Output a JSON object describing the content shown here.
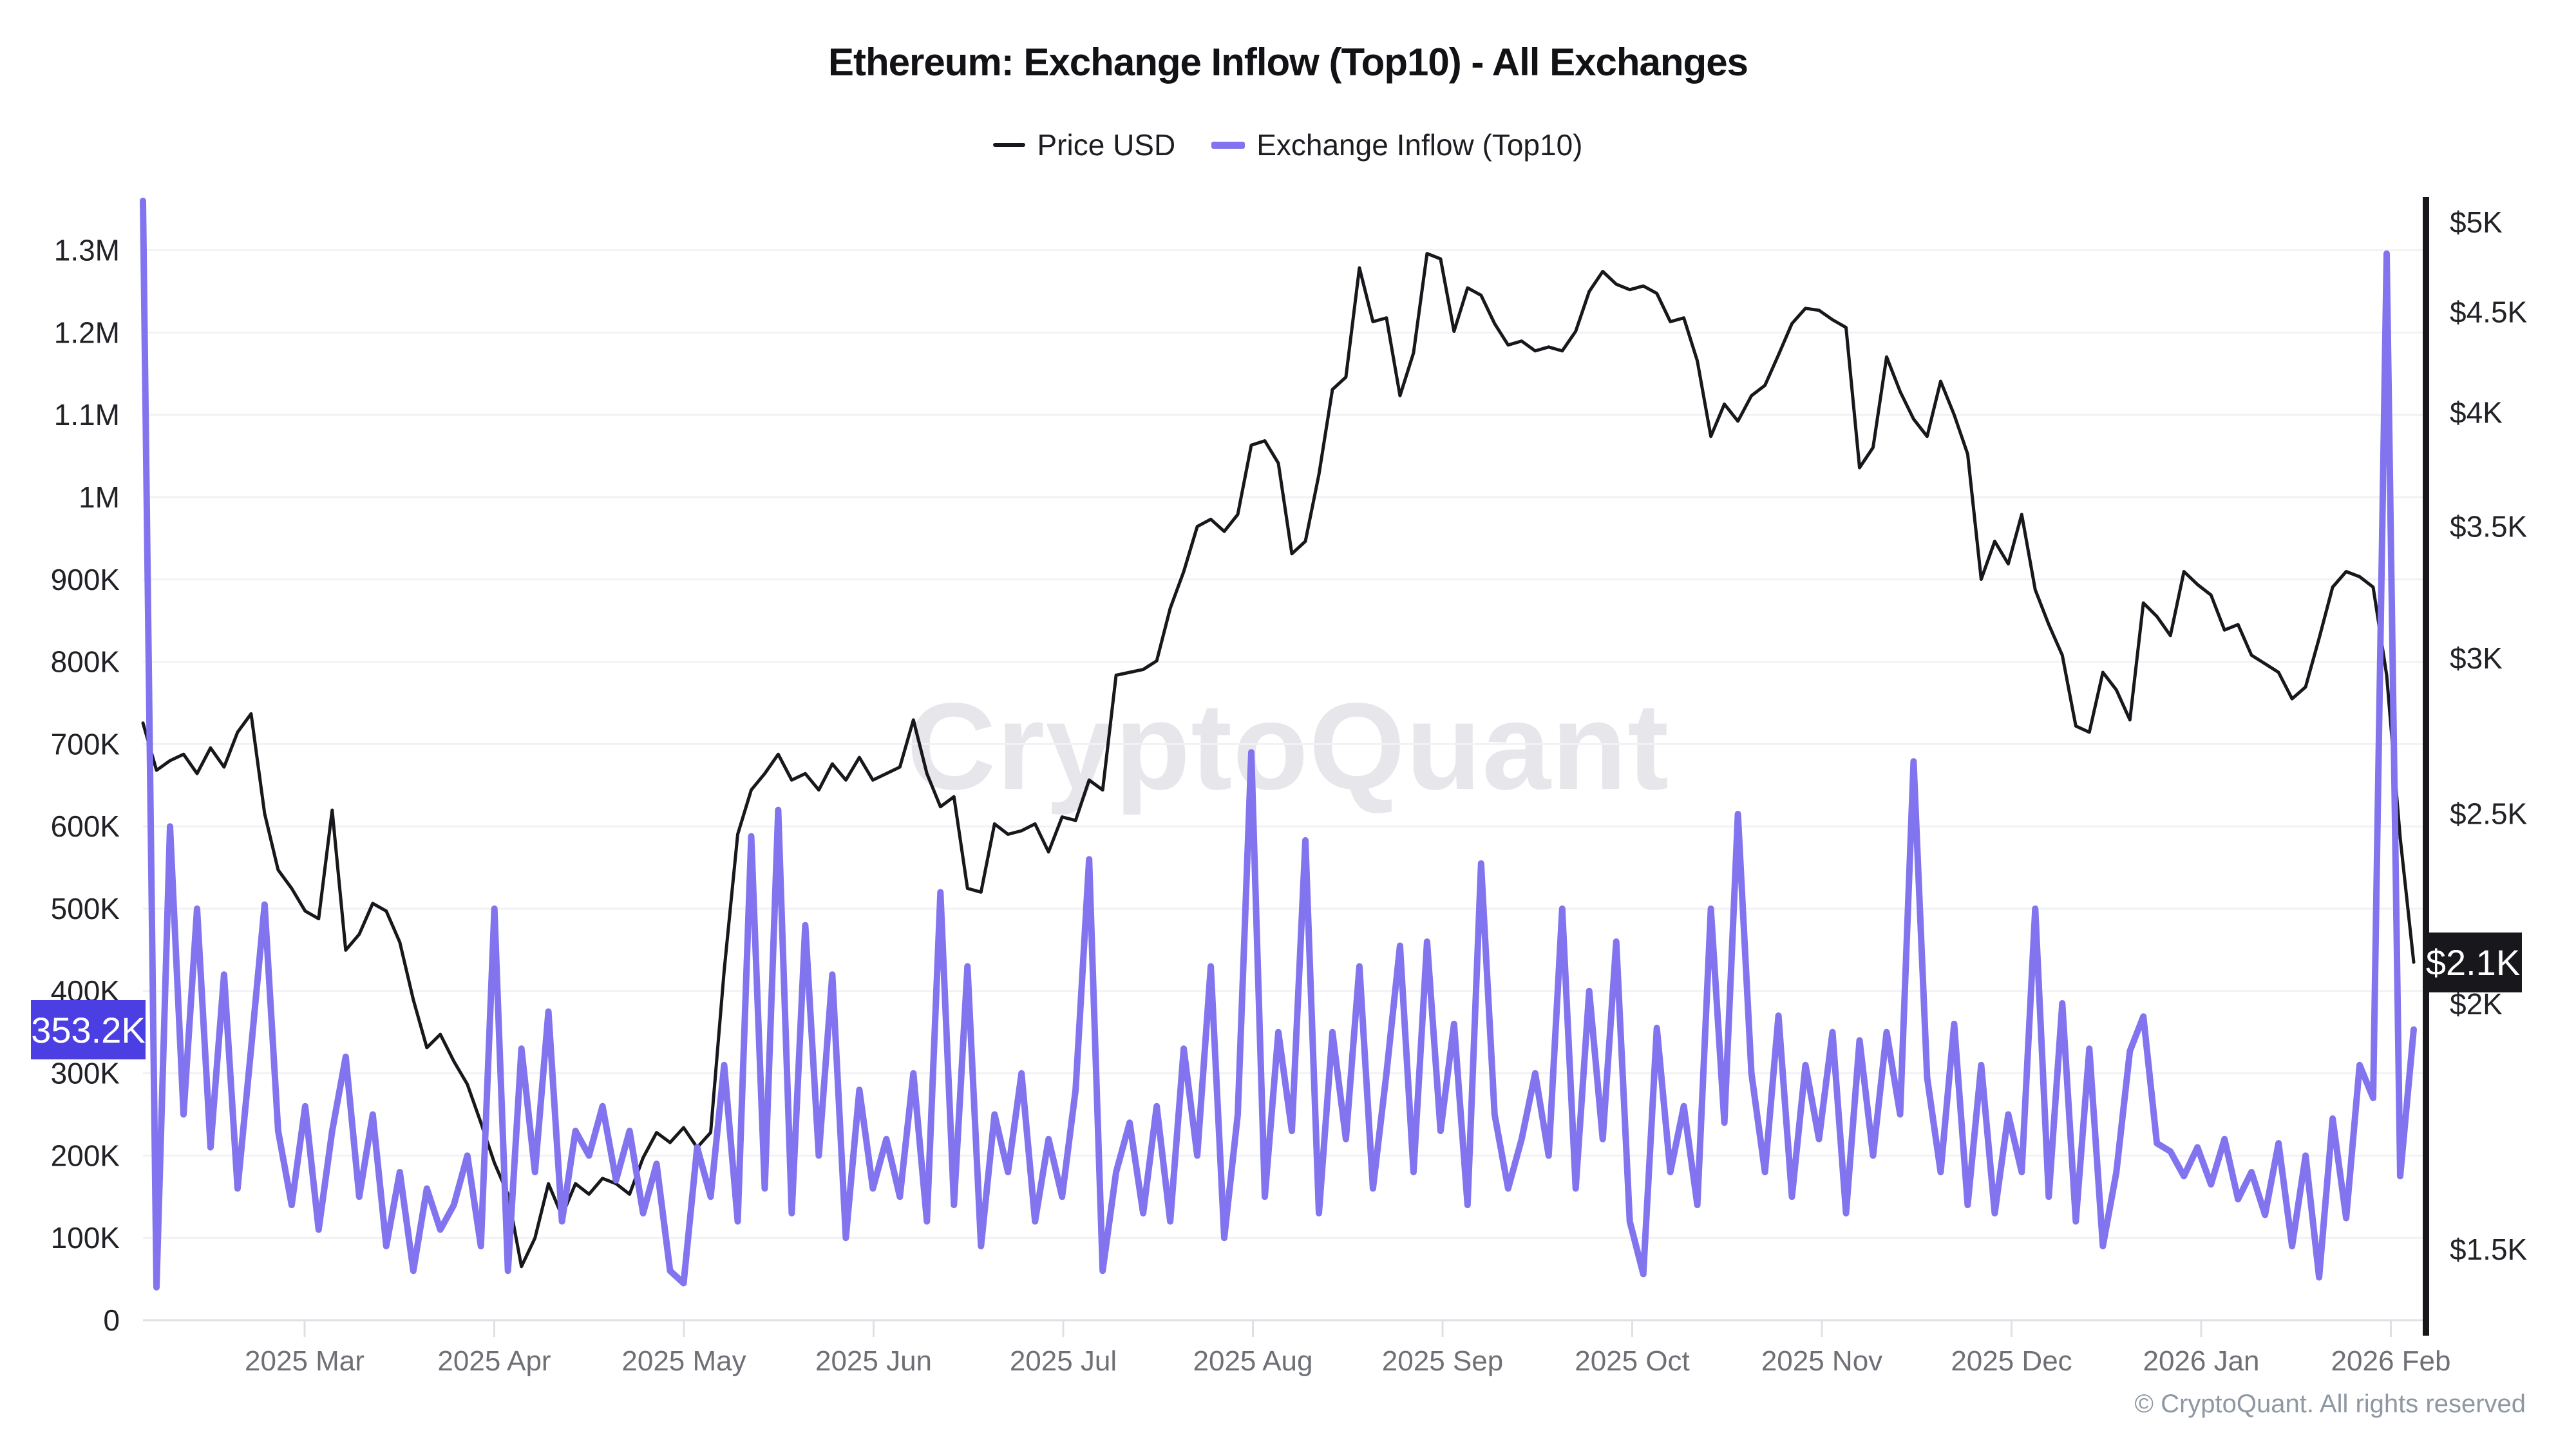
{
  "header": {
    "title": "Ethereum: Exchange Inflow (Top10) - All Exchanges",
    "legend": [
      {
        "label": "Price USD",
        "color": "#17171c"
      },
      {
        "label": "Exchange Inflow (Top10)",
        "color": "#8174ee"
      }
    ]
  },
  "watermark": "CryptoQuant",
  "footer": {
    "copyright": "© CryptoQuant. All rights reserved"
  },
  "axes": {
    "left": {
      "ticks": [
        "0",
        "100K",
        "200K",
        "300K",
        "400K",
        "500K",
        "600K",
        "700K",
        "800K",
        "900K",
        "1M",
        "1.1M",
        "1.2M",
        "1.3M"
      ],
      "tick_values_k": [
        0,
        100,
        200,
        300,
        400,
        500,
        600,
        700,
        800,
        900,
        1000,
        1100,
        1200,
        1300
      ],
      "current_badge": {
        "label": "353.2K",
        "color": "#4b3ee2"
      }
    },
    "right": {
      "ticks": [
        "$5K",
        "$4.5K",
        "$4K",
        "$3.5K",
        "$3K",
        "$2.5K",
        "$2K",
        "$1.5K"
      ],
      "tick_values_usd": [
        5000,
        4500,
        4000,
        3500,
        3000,
        2500,
        2000,
        1500
      ],
      "current_badge": {
        "label": "$2.1K",
        "color": "#17171c"
      }
    },
    "x": {
      "ticks": [
        "2025 Mar",
        "2025 Apr",
        "2025 May",
        "2025 Jun",
        "2025 Jul",
        "2025 Aug",
        "2025 Sep",
        "2025 Oct",
        "2025 Nov",
        "2025 Dec",
        "2026 Jan",
        "2026 Feb"
      ]
    }
  },
  "chart_data": {
    "type": "line",
    "title": "Ethereum: Exchange Inflow (Top10) - All Exchanges",
    "x_range_approx": [
      "2025-02-05",
      "2026-02-04"
    ],
    "x_tick_labels": [
      "2025 Mar",
      "2025 Apr",
      "2025 May",
      "2025 Jun",
      "2025 Jul",
      "2025 Aug",
      "2025 Sep",
      "2025 Oct",
      "2025 Nov",
      "2025 Dec",
      "2026 Jan",
      "2026 Feb"
    ],
    "grid": "horizontal-only",
    "legend_position": "top-center",
    "left_axis": {
      "label": "Exchange Inflow (Top10)",
      "unit": "ETH (thousands)",
      "min": 0,
      "max": 1360,
      "tick_step_k": 100,
      "scale": "linear"
    },
    "right_axis": {
      "label": "Price USD",
      "unit": "USD",
      "scale": "log",
      "ticks": [
        1500,
        2000,
        2500,
        3000,
        3500,
        4000,
        4500,
        5000
      ]
    },
    "last_values": {
      "exchange_inflow_k": 353.2,
      "price_usd_k": 2.1
    },
    "series": [
      {
        "name": "Price USD",
        "axis": "right",
        "color": "#17171c",
        "stroke_width": 5,
        "scale": "log",
        "unit": "USD",
        "values": [
          2780,
          2630,
          2660,
          2680,
          2620,
          2700,
          2640,
          2750,
          2810,
          2500,
          2340,
          2290,
          2230,
          2210,
          2510,
          2130,
          2170,
          2250,
          2230,
          2150,
          2010,
          1900,
          1930,
          1870,
          1820,
          1740,
          1660,
          1600,
          1470,
          1520,
          1620,
          1560,
          1620,
          1600,
          1630,
          1620,
          1600,
          1670,
          1720,
          1700,
          1730,
          1690,
          1720,
          2080,
          2440,
          2570,
          2620,
          2680,
          2600,
          2620,
          2570,
          2650,
          2600,
          2670,
          2600,
          2620,
          2640,
          2790,
          2620,
          2520,
          2550,
          2290,
          2280,
          2470,
          2440,
          2450,
          2470,
          2390,
          2490,
          2480,
          2600,
          2570,
          2940,
          2950,
          2960,
          2990,
          3180,
          3320,
          3500,
          3530,
          3480,
          3550,
          3850,
          3870,
          3770,
          3390,
          3440,
          3720,
          4110,
          4170,
          4740,
          4450,
          4470,
          4080,
          4290,
          4820,
          4790,
          4400,
          4630,
          4590,
          4440,
          4330,
          4350,
          4300,
          4320,
          4300,
          4400,
          4610,
          4720,
          4650,
          4620,
          4640,
          4600,
          4450,
          4470,
          4250,
          3890,
          4040,
          3960,
          4080,
          4130,
          4280,
          4440,
          4520,
          4510,
          4460,
          4420,
          3750,
          3840,
          4270,
          4100,
          3970,
          3890,
          4150,
          3990,
          3810,
          3290,
          3440,
          3350,
          3550,
          3250,
          3120,
          3010,
          2770,
          2750,
          2950,
          2890,
          2790,
          3200,
          3150,
          3080,
          3320,
          3270,
          3230,
          3100,
          3120,
          3010,
          2980,
          2950,
          2860,
          2900,
          3070,
          3260,
          3320,
          3300,
          3260,
          2940,
          2430,
          2100
        ]
      },
      {
        "name": "Exchange Inflow (Top10)",
        "axis": "left",
        "color": "#8174ee",
        "stroke_width": 10,
        "scale": "linear",
        "unit": "K ETH",
        "values": [
          1360,
          40,
          600,
          250,
          500,
          210,
          420,
          160,
          330,
          505,
          230,
          140,
          260,
          110,
          230,
          320,
          150,
          250,
          90,
          180,
          60,
          160,
          110,
          140,
          200,
          90,
          500,
          60,
          330,
          180,
          375,
          120,
          230,
          200,
          260,
          170,
          230,
          130,
          190,
          60,
          45,
          210,
          150,
          310,
          120,
          588,
          160,
          620,
          130,
          480,
          200,
          420,
          100,
          280,
          160,
          220,
          150,
          300,
          120,
          520,
          140,
          430,
          90,
          250,
          180,
          300,
          120,
          220,
          150,
          280,
          560,
          60,
          180,
          240,
          130,
          260,
          120,
          330,
          200,
          430,
          100,
          250,
          690,
          150,
          350,
          230,
          583,
          130,
          350,
          220,
          430,
          160,
          300,
          455,
          180,
          460,
          230,
          360,
          140,
          555,
          250,
          160,
          220,
          300,
          200,
          500,
          160,
          400,
          220,
          460,
          120,
          56,
          355,
          180,
          260,
          140,
          500,
          240,
          615,
          300,
          180,
          370,
          150,
          310,
          220,
          350,
          130,
          340,
          200,
          350,
          250,
          679,
          295,
          180,
          360,
          140,
          310,
          130,
          250,
          180,
          500,
          150,
          385,
          120,
          330,
          90,
          180,
          327,
          369,
          215,
          205,
          175,
          210,
          165,
          220,
          147,
          180,
          128,
          215,
          90,
          200,
          52,
          245,
          124,
          310,
          270,
          1296,
          175,
          353.2
        ]
      }
    ]
  }
}
